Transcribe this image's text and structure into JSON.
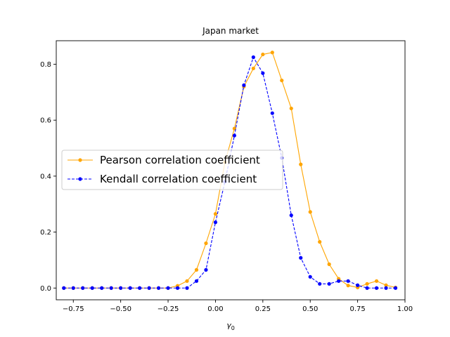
{
  "chart_data": {
    "type": "line",
    "title": "Japan market",
    "xlabel": "γ₀",
    "xlabel_main": "γ",
    "xlabel_sub": "0",
    "ylabel": "",
    "xlim": [
      -0.84,
      1.0
    ],
    "ylim": [
      -0.042,
      0.884
    ],
    "x_ticks": [
      -0.75,
      -0.5,
      -0.25,
      0.0,
      0.25,
      0.5,
      0.75,
      1.0
    ],
    "x_tick_labels": [
      "−0.75",
      "−0.50",
      "−0.25",
      "0.00",
      "0.25",
      "0.50",
      "0.75",
      "1.00"
    ],
    "y_ticks": [
      0.0,
      0.2,
      0.4,
      0.6,
      0.8
    ],
    "y_tick_labels": [
      "0.0",
      "0.2",
      "0.4",
      "0.6",
      "0.8"
    ],
    "grid": false,
    "legend_position": "center-left",
    "x": [
      -0.8,
      -0.775,
      -0.75,
      -0.725,
      -0.7,
      -0.675,
      -0.65,
      -0.625,
      -0.6,
      -0.575,
      -0.55,
      -0.525,
      -0.5,
      -0.475,
      -0.45,
      -0.425,
      -0.4,
      -0.375,
      -0.35,
      -0.325,
      -0.3,
      -0.275,
      -0.25,
      -0.225,
      -0.2,
      -0.175,
      -0.15,
      -0.125,
      -0.1,
      -0.075,
      -0.05,
      -0.025,
      0.0,
      0.025,
      0.05,
      0.075,
      0.1,
      0.125,
      0.15,
      0.175,
      0.2,
      0.225,
      0.25,
      0.275,
      0.3,
      0.325,
      0.35,
      0.375,
      0.4,
      0.425,
      0.45,
      0.475,
      0.5,
      0.525,
      0.55,
      0.575,
      0.6,
      0.625,
      0.65,
      0.675,
      0.7,
      0.725,
      0.75,
      0.775,
      0.8,
      0.825,
      0.85,
      0.875,
      0.9,
      0.925,
      0.95
    ],
    "series": [
      {
        "name": "Pearson correlation coefficient",
        "color": "#ffa500",
        "linestyle": "solid",
        "x": [
          -0.8,
          -0.75,
          -0.7,
          -0.65,
          -0.6,
          -0.55,
          -0.5,
          -0.45,
          -0.4,
          -0.35,
          -0.3,
          -0.25,
          -0.2,
          -0.15,
          -0.1,
          -0.05,
          0.0,
          0.05,
          0.1,
          0.15,
          0.2,
          0.25,
          0.3,
          0.35,
          0.4,
          0.45,
          0.5,
          0.55,
          0.6,
          0.65,
          0.7,
          0.75,
          0.8,
          0.85,
          0.9,
          0.95
        ],
        "values": [
          0.0,
          0.0,
          0.0,
          0.0,
          0.0,
          0.0,
          0.0,
          0.0,
          0.0,
          0.0,
          0.0,
          0.0,
          0.008,
          0.025,
          0.065,
          0.16,
          0.265,
          0.45,
          0.57,
          0.72,
          0.785,
          0.835,
          0.842,
          0.742,
          0.642,
          0.442,
          0.272,
          0.165,
          0.085,
          0.033,
          0.009,
          0.002,
          0.015,
          0.025,
          0.01,
          0.002
        ]
      },
      {
        "name": "Kendall correlation coefficient",
        "color": "#0000ff",
        "linestyle": "dashed",
        "x": [
          -0.8,
          -0.75,
          -0.7,
          -0.65,
          -0.6,
          -0.55,
          -0.5,
          -0.45,
          -0.4,
          -0.35,
          -0.3,
          -0.25,
          -0.2,
          -0.15,
          -0.1,
          -0.05,
          0.0,
          0.05,
          0.1,
          0.15,
          0.2,
          0.25,
          0.3,
          0.35,
          0.4,
          0.45,
          0.5,
          0.55,
          0.6,
          0.65,
          0.7,
          0.75,
          0.8,
          0.85,
          0.9,
          0.95
        ],
        "values": [
          0.0,
          0.0,
          0.0,
          0.0,
          0.0,
          0.0,
          0.0,
          0.0,
          0.0,
          0.0,
          0.0,
          0.0,
          0.0,
          0.0,
          0.025,
          0.065,
          0.235,
          0.38,
          0.545,
          0.725,
          0.825,
          0.768,
          0.625,
          0.465,
          0.26,
          0.108,
          0.04,
          0.015,
          0.015,
          0.025,
          0.025,
          0.01,
          0.0,
          0.0,
          0.0,
          0.0
        ]
      }
    ]
  }
}
